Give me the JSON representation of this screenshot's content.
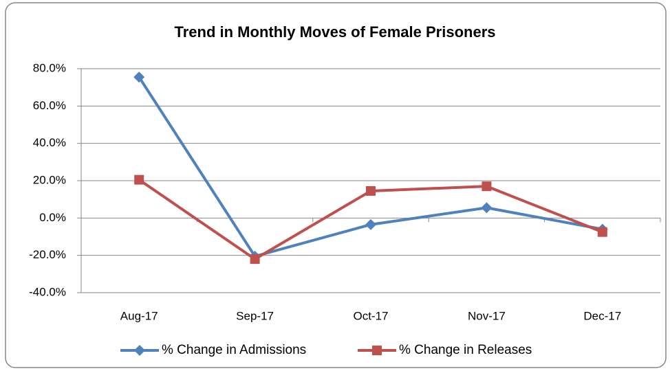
{
  "chart_data": {
    "type": "line",
    "title": "Trend in Monthly Moves of Female Prisoners",
    "categories": [
      "Aug-17",
      "Sep-17",
      "Oct-17",
      "Nov-17",
      "Dec-17"
    ],
    "series": [
      {
        "name": "% Change in Admissions",
        "color": "#4f81bd",
        "marker": "diamond",
        "values": [
          75.5,
          -20.5,
          -3.5,
          5.5,
          -6
        ]
      },
      {
        "name": "% Change in Releases",
        "color": "#c0504d",
        "marker": "square",
        "values": [
          20.5,
          -22,
          14.5,
          17,
          -7.5
        ]
      }
    ],
    "ylim": [
      -40,
      80
    ],
    "yticks": [
      {
        "value": -40,
        "label": "-40.0%"
      },
      {
        "value": -20,
        "label": "-20.0%"
      },
      {
        "value": 0,
        "label": "0.0%"
      },
      {
        "value": 20,
        "label": "20.0%"
      },
      {
        "value": 40,
        "label": "40.0%"
      },
      {
        "value": 60,
        "label": "60.0%"
      },
      {
        "value": 80,
        "label": "80.0%"
      }
    ],
    "grid": true,
    "legend": "bottom"
  }
}
